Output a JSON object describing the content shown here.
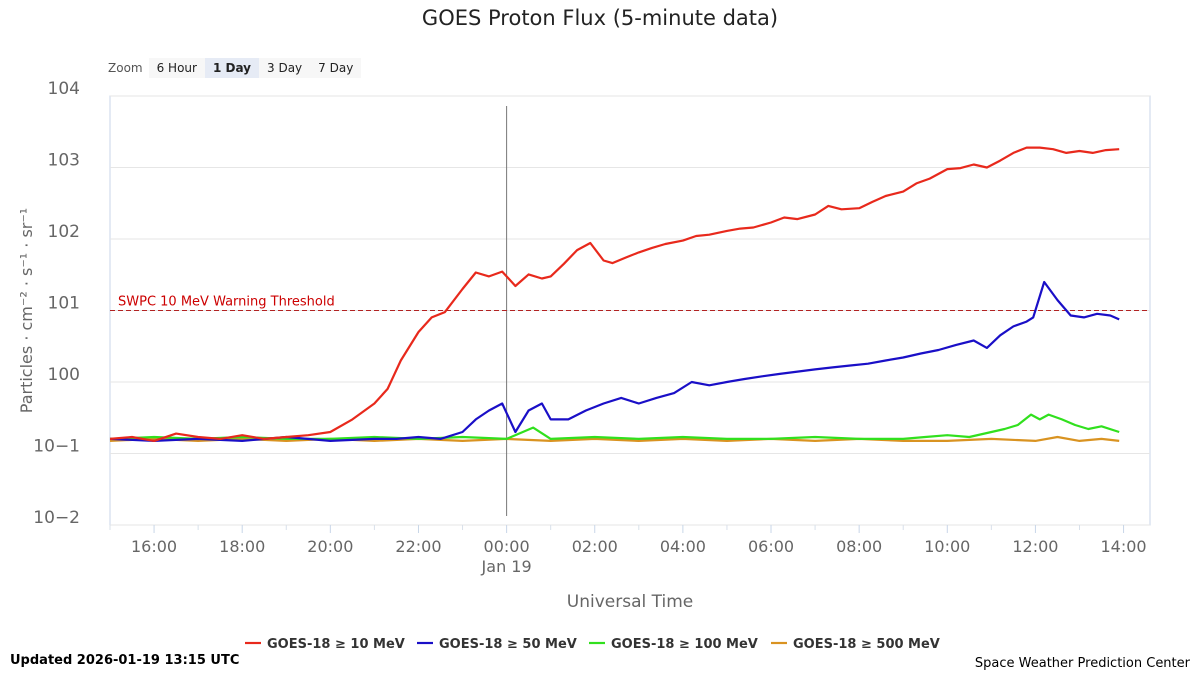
{
  "chart_data": {
    "type": "line",
    "title": "GOES Proton Flux (5-minute data)",
    "xlabel": "Universal Time",
    "ylabel": "Particles · cm⁻² · s⁻¹ · sr⁻¹",
    "yscale": "log",
    "ylim_exp": [
      -2,
      4
    ],
    "x_unit": "hours since 2026-01-18 00:00 UTC",
    "xlim": [
      15,
      38.6
    ],
    "x_ticks": [
      {
        "x": 16,
        "label": "16:00"
      },
      {
        "x": 18,
        "label": "18:00"
      },
      {
        "x": 20,
        "label": "20:00"
      },
      {
        "x": 22,
        "label": "22:00"
      },
      {
        "x": 24,
        "label": "00:00"
      },
      {
        "x": 26,
        "label": "02:00"
      },
      {
        "x": 28,
        "label": "04:00"
      },
      {
        "x": 30,
        "label": "06:00"
      },
      {
        "x": 32,
        "label": "08:00"
      },
      {
        "x": 34,
        "label": "10:00"
      },
      {
        "x": 36,
        "label": "12:00"
      },
      {
        "x": 38,
        "label": "14:00"
      }
    ],
    "date_marker": {
      "x": 24,
      "label": "Jan 19"
    },
    "y_ticks": [
      {
        "exp": 4,
        "base": "10",
        "sup": "4"
      },
      {
        "exp": 3,
        "base": "10",
        "sup": "3"
      },
      {
        "exp": 2,
        "base": "10",
        "sup": "2"
      },
      {
        "exp": 1,
        "base": "10",
        "sup": "1"
      },
      {
        "exp": 0,
        "base": "10",
        "sup": "0"
      },
      {
        "exp": -1,
        "base": "10",
        "sup": "−1"
      },
      {
        "exp": -2,
        "base": "10",
        "sup": "−2"
      }
    ],
    "threshold": {
      "label": "SWPC 10 MeV Warning Threshold",
      "value": 10,
      "color": "#cc0000"
    },
    "series": [
      {
        "name": "GOES-18 ≥ 10 MeV",
        "color": "#e8291c",
        "x": [
          15,
          15.5,
          16,
          16.5,
          17,
          17.5,
          18,
          18.5,
          19,
          19.5,
          20,
          20.5,
          21,
          21.3,
          21.6,
          22,
          22.3,
          22.6,
          23,
          23.3,
          23.6,
          23.9,
          24.2,
          24.5,
          24.8,
          25,
          25.3,
          25.6,
          25.9,
          26.2,
          26.4,
          26.7,
          27,
          27.3,
          27.6,
          28,
          28.3,
          28.6,
          29,
          29.3,
          29.6,
          30,
          30.3,
          30.6,
          31,
          31.3,
          31.6,
          32,
          32.3,
          32.6,
          33,
          33.3,
          33.6,
          34,
          34.3,
          34.6,
          34.9,
          35.2,
          35.5,
          35.8,
          36.1,
          36.4,
          36.7,
          37,
          37.3,
          37.6,
          37.9
        ],
        "y": [
          0.16,
          0.17,
          0.15,
          0.19,
          0.17,
          0.16,
          0.18,
          0.16,
          0.17,
          0.18,
          0.2,
          0.3,
          0.5,
          0.8,
          2.0,
          5.0,
          8.0,
          9.5,
          20,
          34,
          30,
          35,
          22,
          32,
          28,
          30,
          45,
          70,
          88,
          50,
          46,
          55,
          65,
          75,
          85,
          95,
          110,
          115,
          130,
          140,
          145,
          170,
          200,
          190,
          220,
          290,
          260,
          270,
          330,
          400,
          460,
          600,
          700,
          950,
          980,
          1100,
          1000,
          1250,
          1600,
          1900,
          1900,
          1800,
          1600,
          1700,
          1600,
          1750,
          1800
        ]
      },
      {
        "name": "GOES-18 ≥ 50 MeV",
        "color": "#1a0fc7",
        "x": [
          15,
          16,
          17,
          18,
          19,
          20,
          21,
          21.5,
          22,
          22.5,
          23,
          23.3,
          23.6,
          23.9,
          24.2,
          24.5,
          24.8,
          25,
          25.4,
          25.8,
          26.2,
          26.6,
          27,
          27.4,
          27.8,
          28.2,
          28.6,
          29,
          29.4,
          29.8,
          30.2,
          30.6,
          31,
          31.4,
          31.8,
          32.2,
          32.6,
          33,
          33.4,
          33.8,
          34.2,
          34.6,
          34.9,
          35.2,
          35.5,
          35.8,
          35.95,
          36.2,
          36.5,
          36.8,
          37.1,
          37.4,
          37.7,
          37.9
        ],
        "y": [
          0.16,
          0.15,
          0.16,
          0.15,
          0.17,
          0.15,
          0.16,
          0.16,
          0.17,
          0.16,
          0.2,
          0.3,
          0.4,
          0.5,
          0.2,
          0.4,
          0.5,
          0.3,
          0.3,
          0.4,
          0.5,
          0.6,
          0.5,
          0.6,
          0.7,
          1.0,
          0.9,
          1.0,
          1.1,
          1.2,
          1.3,
          1.4,
          1.5,
          1.6,
          1.7,
          1.8,
          2.0,
          2.2,
          2.5,
          2.8,
          3.3,
          3.8,
          3.0,
          4.5,
          6.0,
          7.0,
          8.0,
          25,
          14,
          8.5,
          8,
          9,
          8.5,
          7.5
        ]
      },
      {
        "name": "GOES-18 ≥ 100 MeV",
        "color": "#31e01e",
        "x": [
          15,
          16,
          17,
          18,
          19,
          20,
          21,
          22,
          23,
          24,
          24.6,
          25,
          26,
          27,
          28,
          29,
          30,
          31,
          32,
          33,
          33.5,
          34,
          34.5,
          35,
          35.3,
          35.6,
          35.9,
          36.1,
          36.3,
          36.6,
          36.9,
          37.2,
          37.5,
          37.9
        ],
        "y": [
          0.16,
          0.17,
          0.16,
          0.17,
          0.16,
          0.16,
          0.17,
          0.16,
          0.17,
          0.16,
          0.23,
          0.16,
          0.17,
          0.16,
          0.17,
          0.16,
          0.16,
          0.17,
          0.16,
          0.16,
          0.17,
          0.18,
          0.17,
          0.2,
          0.22,
          0.25,
          0.35,
          0.3,
          0.35,
          0.3,
          0.25,
          0.22,
          0.24,
          0.2
        ]
      },
      {
        "name": "GOES-18 ≥ 500 MeV",
        "color": "#d99321",
        "x": [
          15,
          16,
          17,
          18,
          19,
          20,
          21,
          22,
          23,
          24,
          25,
          26,
          27,
          28,
          29,
          30,
          31,
          32,
          33,
          34,
          35,
          36,
          36.5,
          37,
          37.5,
          37.9
        ],
        "y": [
          0.15,
          0.16,
          0.15,
          0.16,
          0.15,
          0.16,
          0.15,
          0.16,
          0.15,
          0.16,
          0.15,
          0.16,
          0.15,
          0.16,
          0.15,
          0.16,
          0.15,
          0.16,
          0.15,
          0.15,
          0.16,
          0.15,
          0.17,
          0.15,
          0.16,
          0.15
        ]
      }
    ]
  },
  "zoom": {
    "label": "Zoom",
    "options": [
      "6 Hour",
      "1 Day",
      "3 Day",
      "7 Day"
    ],
    "active": "1 Day"
  },
  "footer": {
    "updated": "Updated 2026-01-19 13:15 UTC",
    "credit": "Space Weather Prediction Center"
  }
}
